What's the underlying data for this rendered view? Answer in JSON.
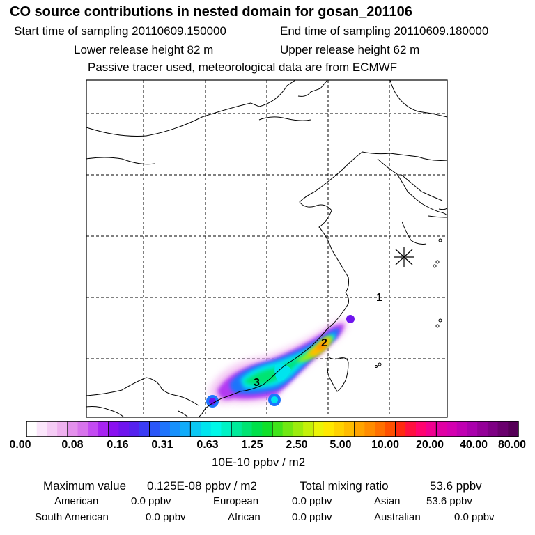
{
  "header": {
    "title": "CO  source contributions in nested domain for gosan_201106",
    "start_time": "Start time of sampling 20110609.150000",
    "end_time": "End time of sampling 20110609.180000",
    "lower_height": "Lower release height   82 m",
    "upper_height": "Upper release height   62 m",
    "note": "Passive tracer used, meteorological data are from ECMWF"
  },
  "map": {
    "markers": [
      {
        "label": "1",
        "lon": 125.8,
        "lat": 30.0
      },
      {
        "label": "2",
        "lon": 120.6,
        "lat": 24.9
      },
      {
        "label": "3",
        "lon": 115.0,
        "lat": 22.2
      }
    ],
    "receptor": {
      "name": "gosan",
      "symbol": "star"
    }
  },
  "colorbar": {
    "tick_labels": [
      "0.00",
      "0.08",
      "0.16",
      "0.31",
      "0.63",
      "1.25",
      "2.50",
      "5.00",
      "10.00",
      "20.00",
      "40.00",
      "80.00"
    ],
    "units": "10E-10 ppbv / m2",
    "colors": [
      "#ffffff",
      "#fbe6fb",
      "#f5ccf5",
      "#efb1ef",
      "#e490ec",
      "#d873ec",
      "#c44bf2",
      "#a824f2",
      "#8a10f0",
      "#6f14ee",
      "#5522ee",
      "#3b3cf4",
      "#2a56f8",
      "#1e74fc",
      "#1690fc",
      "#10acfa",
      "#0ac8f4",
      "#00e4ee",
      "#00f8e8",
      "#00f2c4",
      "#00ea9a",
      "#00e472",
      "#00e04a",
      "#10e02a",
      "#40e41a",
      "#70e812",
      "#9cec0e",
      "#c4f00a",
      "#ecf406",
      "#ffe800",
      "#ffd200",
      "#ffbc00",
      "#ffa400",
      "#ff8c00",
      "#ff7000",
      "#ff5000",
      "#ff2a10",
      "#ff1040",
      "#ff0470",
      "#f00090",
      "#e000a4",
      "#d400b0",
      "#c000b2",
      "#aa00ac",
      "#940098",
      "#7e0084",
      "#6a006e",
      "#560058"
    ]
  },
  "summary": {
    "maximum_label": "Maximum value",
    "maximum_value": "0.125E-08 ppbv / m2",
    "total_label": "Total mixing ratio",
    "total_value": "53.6 ppbv",
    "regions": [
      {
        "name": "American",
        "value": "0.0 ppbv"
      },
      {
        "name": "European",
        "value": "0.0 ppbv"
      },
      {
        "name": "Asian",
        "value": "53.6 ppbv"
      },
      {
        "name": "South American",
        "value": "0.0 ppbv"
      },
      {
        "name": "African",
        "value": "0.0 ppbv"
      },
      {
        "name": "Australian",
        "value": "0.0 ppbv"
      }
    ]
  }
}
